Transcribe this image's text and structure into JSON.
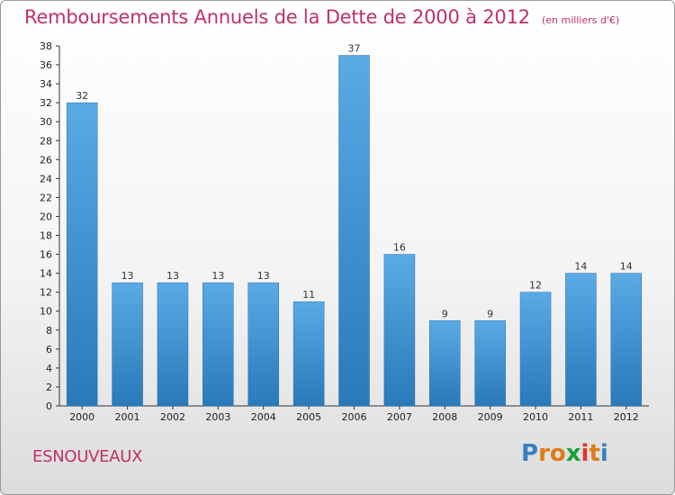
{
  "chart_data": {
    "type": "bar",
    "title": "Remboursements Annuels de la Dette de 2000 à 2012",
    "subtitle": "(en milliers d'€)",
    "categories": [
      "2000",
      "2001",
      "2002",
      "2003",
      "2004",
      "2005",
      "2006",
      "2007",
      "2008",
      "2009",
      "2010",
      "2011",
      "2012"
    ],
    "values": [
      32,
      13,
      13,
      13,
      13,
      11,
      37,
      16,
      9,
      9,
      12,
      14,
      14
    ],
    "ylim": [
      0,
      38
    ],
    "yticks": [
      0,
      2,
      4,
      6,
      8,
      10,
      12,
      14,
      16,
      18,
      20,
      22,
      24,
      26,
      28,
      30,
      32,
      34,
      36,
      38
    ],
    "xlabel": "",
    "ylabel": "",
    "grid": false,
    "legend": "none",
    "bar_color_top": "#5aaae6",
    "bar_color_bottom": "#2a79b8"
  },
  "footer": {
    "place_name": "ESNOUVEAUX",
    "logo_letters": [
      "P",
      "r",
      "o",
      "x",
      "i",
      "t",
      "i"
    ],
    "logo_colors": [
      "#3a7fc4",
      "#e07b1a",
      "#e07b1a",
      "#1a9e3c",
      "#e0362e",
      "#e07b1a",
      "#3a7fc4"
    ]
  },
  "colors": {
    "title": "#c0306a",
    "axis": "#333333"
  }
}
